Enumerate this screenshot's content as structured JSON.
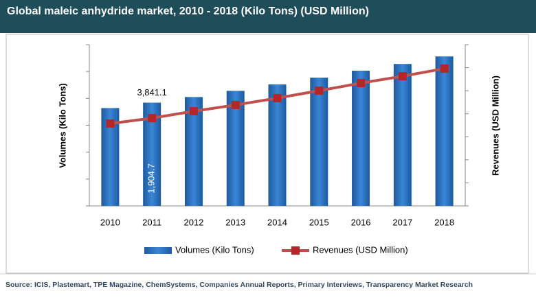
{
  "chart_data": {
    "type": "bar_line",
    "title": "Global maleic anhydride market, 2010 - 2018 (Kilo Tons) (USD Million)",
    "y_label": "Volumes (Kilo Tons)",
    "y2_label": "Revenues (USD Million)",
    "categories": [
      "2010",
      "2011",
      "2012",
      "2013",
      "2014",
      "2015",
      "2016",
      "2017",
      "2018"
    ],
    "series": [
      {
        "name": "Volumes (Kilo Tons)",
        "type": "bar",
        "color": "#2f76c0",
        "values": [
          3640,
          3841.1,
          4050,
          4280,
          4520,
          4770,
          5030,
          5280,
          5560
        ],
        "value_labels": [
          null,
          "3,841.1",
          null,
          null,
          null,
          null,
          null,
          null,
          null
        ]
      },
      {
        "name": "Revenues (USD Million)",
        "type": "line",
        "axis": "y2",
        "color": "#c0504d",
        "values": [
          1787,
          1904.7,
          2055,
          2190,
          2340,
          2500,
          2665,
          2815,
          2980
        ],
        "value_labels": [
          null,
          "1,904.7",
          null,
          null,
          null,
          null,
          null,
          null,
          null
        ]
      }
    ],
    "ylim": [
      0,
      6000
    ],
    "yticks": [
      0,
      1000,
      2000,
      3000,
      4000,
      5000,
      6000
    ],
    "y2lim": [
      0,
      3500
    ],
    "y2ticks": [
      0,
      500,
      1000,
      1500,
      2000,
      2500,
      3000,
      3500
    ],
    "legend": "bottom",
    "source": "Source: ICIS, Plastemart, TPE Magazine, ChemSystems, Companies Annual Reports, Primary Interviews, Transparency Market Research"
  }
}
